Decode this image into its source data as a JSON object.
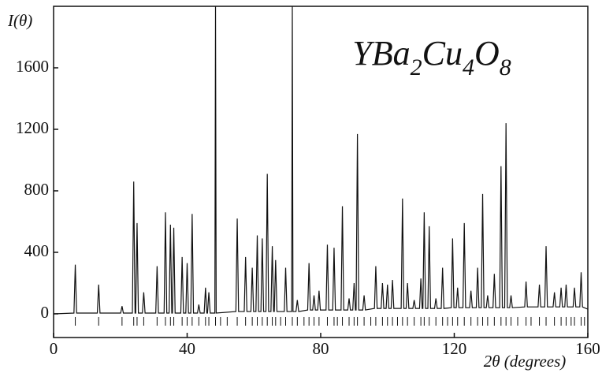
{
  "chart_data": {
    "type": "line",
    "title": "YBa2Cu4O8",
    "y_label": "I(θ)",
    "x_label": "2θ (degrees)",
    "xlim": [
      0,
      160
    ],
    "xticks": [
      0,
      40,
      80,
      120,
      160
    ],
    "ylim": [
      -154,
      2000
    ],
    "yticks": [
      0,
      400,
      800,
      1200,
      1600
    ],
    "color": "#111111",
    "x": [
      0,
      6.1,
      6.5,
      6.9,
      13.1,
      13.5,
      13.9,
      20.1,
      20.5,
      20.9,
      23.6,
      24,
      24.4,
      24.6,
      25,
      25.4,
      26.6,
      27,
      27.4,
      30.6,
      31,
      31.4,
      33.1,
      33.5,
      33.9,
      34.6,
      35,
      35.4,
      35.6,
      36,
      36.4,
      38.1,
      38.5,
      38.9,
      39.6,
      40,
      40.4,
      41.1,
      41.5,
      41.9,
      43.1,
      43.5,
      43.9,
      45.1,
      45.5,
      45.9,
      46.1,
      46.5,
      46.9,
      48.3,
      48.5,
      48.7,
      54.6,
      55,
      55.4,
      57.1,
      57.5,
      57.9,
      59.1,
      59.5,
      59.9,
      60.6,
      61,
      61.4,
      62.1,
      62.5,
      62.9,
      63.6,
      64,
      64.4,
      65.1,
      65.5,
      65.9,
      66.1,
      66.5,
      66.9,
      69.1,
      69.5,
      69.9,
      71.3,
      71.5,
      71.7,
      72.6,
      73,
      73.4,
      76.1,
      76.5,
      76.9,
      77.6,
      78,
      78.4,
      79.1,
      79.5,
      79.9,
      81.6,
      82,
      82.4,
      83.6,
      84,
      84.4,
      86.1,
      86.5,
      86.9,
      88.1,
      88.5,
      88.9,
      89.6,
      90,
      90.4,
      90.6,
      91,
      91.4,
      92.6,
      93,
      93.4,
      96.1,
      96.5,
      96.9,
      98.1,
      98.5,
      98.9,
      99.6,
      100,
      100.4,
      101.1,
      101.5,
      101.9,
      104.1,
      104.5,
      104.9,
      105.6,
      106,
      106.4,
      107.6,
      108,
      108.4,
      109.6,
      110,
      110.4,
      110.6,
      111,
      111.4,
      112.1,
      112.5,
      112.9,
      114.1,
      114.5,
      114.9,
      116.1,
      116.5,
      116.9,
      119.1,
      119.5,
      119.9,
      120.6,
      121,
      121.4,
      122.6,
      123,
      123.4,
      124.6,
      125,
      125.4,
      126.6,
      127,
      127.4,
      128.1,
      128.5,
      128.9,
      129.6,
      130,
      130.4,
      131.6,
      132,
      132.4,
      133.6,
      134,
      134.4,
      135.1,
      135.5,
      135.9,
      136.6,
      137,
      137.4,
      141.1,
      141.5,
      141.9,
      145.1,
      145.5,
      145.9,
      147.1,
      147.5,
      147.9,
      149.6,
      150,
      150.4,
      151.6,
      152,
      152.4,
      153.1,
      153.5,
      153.9,
      155.6,
      156,
      156.4,
      157.6,
      158,
      158.4,
      160
    ],
    "values": [
      0,
      5,
      320,
      5,
      5,
      190,
      5,
      5,
      50,
      5,
      5,
      860,
      5,
      5,
      590,
      5,
      5,
      140,
      5,
      5,
      310,
      5,
      5,
      660,
      5,
      5,
      580,
      5,
      5,
      560,
      5,
      5,
      370,
      5,
      5,
      330,
      5,
      5,
      650,
      5,
      5,
      60,
      5,
      5,
      170,
      5,
      5,
      140,
      5,
      5,
      2000,
      5,
      15,
      620,
      15,
      15,
      370,
      15,
      15,
      300,
      15,
      15,
      510,
      15,
      15,
      490,
      15,
      15,
      910,
      15,
      15,
      440,
      15,
      15,
      350,
      15,
      15,
      300,
      15,
      15,
      2000,
      15,
      15,
      90,
      15,
      25,
      330,
      25,
      25,
      120,
      25,
      25,
      150,
      25,
      25,
      450,
      25,
      25,
      430,
      25,
      25,
      700,
      25,
      25,
      100,
      25,
      25,
      200,
      25,
      25,
      1170,
      25,
      25,
      120,
      25,
      35,
      310,
      35,
      35,
      200,
      35,
      35,
      190,
      35,
      35,
      220,
      35,
      35,
      750,
      35,
      35,
      200,
      35,
      35,
      90,
      35,
      35,
      230,
      35,
      35,
      660,
      35,
      35,
      570,
      35,
      35,
      100,
      35,
      35,
      300,
      35,
      40,
      490,
      40,
      40,
      170,
      40,
      40,
      590,
      40,
      40,
      150,
      40,
      40,
      300,
      40,
      40,
      780,
      40,
      40,
      120,
      40,
      40,
      260,
      40,
      40,
      960,
      40,
      40,
      1240,
      40,
      40,
      120,
      40,
      45,
      210,
      45,
      45,
      190,
      45,
      45,
      440,
      45,
      45,
      140,
      45,
      45,
      170,
      45,
      45,
      190,
      45,
      45,
      170,
      45,
      45,
      270,
      45,
      30
    ],
    "reflections": [
      6.5,
      13.5,
      20.5,
      24,
      25,
      27,
      31,
      33.5,
      35,
      36,
      38.5,
      40,
      41.5,
      43.5,
      45.5,
      46.5,
      48.5,
      50,
      52,
      55,
      57.5,
      59.5,
      61,
      62.5,
      64,
      65.5,
      66.5,
      68,
      69.5,
      71.5,
      73,
      75,
      76.5,
      78,
      79.5,
      82,
      84,
      85,
      86.5,
      88.5,
      90,
      91,
      93,
      95,
      96.5,
      98.5,
      100,
      101.5,
      103,
      104.5,
      106,
      108,
      110,
      111,
      112.5,
      114.5,
      116.5,
      118,
      119.5,
      121,
      123,
      125,
      127,
      128.5,
      130,
      132,
      134,
      135.5,
      137,
      139,
      141.5,
      143,
      145.5,
      147.5,
      150,
      152,
      153.5,
      155,
      156,
      158,
      159
    ]
  }
}
